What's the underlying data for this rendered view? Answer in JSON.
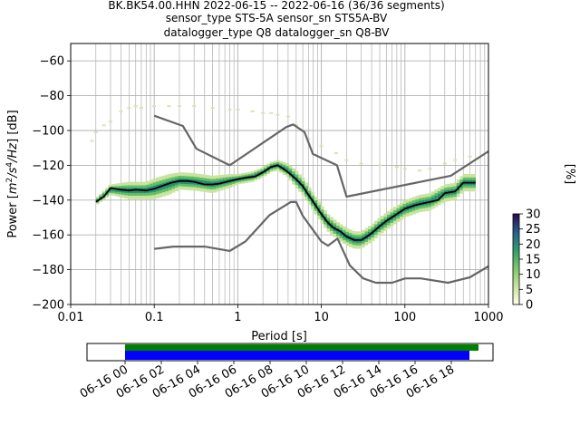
{
  "chart_data": [
    {
      "type": "heatmap",
      "kind": "ppsd",
      "title_lines": [
        "BK.BK54.00.HHN   2022-06-15 -- 2022-06-16  (36/36 segments)",
        "sensor_type STS-5A sensor_sn STS5A-BV",
        "datalogger_type Q8 datalogger_sn Q8-BV"
      ],
      "xlabel": "Period [s]",
      "ylabel": "Power [m²/s⁴/Hz] [dB]",
      "ylabel_parts": {
        "a": "Power [",
        "b": "m",
        "c": "2",
        "d": "/s",
        "e": "4",
        "f": "/Hz",
        "g": "] [dB]"
      },
      "x_scale": "log",
      "xlim": [
        0.01,
        1000
      ],
      "ylim": [
        -200,
        -50
      ],
      "x_ticks": [
        {
          "value": 0.01,
          "label": "0.01"
        },
        {
          "value": 0.1,
          "label": "0.1"
        },
        {
          "value": 1,
          "label": "1"
        },
        {
          "value": 10,
          "label": "10"
        },
        {
          "value": 100,
          "label": "100"
        },
        {
          "value": 1000,
          "label": "1000"
        }
      ],
      "y_ticks": [
        {
          "value": -60,
          "label": "−60"
        },
        {
          "value": -80,
          "label": "−80"
        },
        {
          "value": -100,
          "label": "−100"
        },
        {
          "value": -120,
          "label": "−120"
        },
        {
          "value": -140,
          "label": "−140"
        },
        {
          "value": -160,
          "label": "−160"
        },
        {
          "value": -180,
          "label": "−180"
        },
        {
          "value": -200,
          "label": "−200"
        }
      ],
      "grid": true,
      "nhnm": {
        "x": [
          0.1,
          0.22,
          0.32,
          0.8,
          3.8,
          4.6,
          6.3,
          7.9,
          15.4,
          20,
          354.8,
          1000
        ],
        "y": [
          -91.5,
          -97.4,
          -110.5,
          -120,
          -98,
          -96.5,
          -101,
          -113.5,
          -120,
          -138,
          -126,
          -112
        ]
      },
      "nlnm": {
        "x": [
          0.1,
          0.17,
          0.4,
          0.8,
          1.24,
          2.4,
          4.3,
          5,
          6,
          10,
          12,
          15.6,
          21.9,
          31.6,
          45,
          70,
          101,
          154,
          328,
          600,
          1000
        ],
        "y": [
          -168,
          -166.7,
          -166.7,
          -169.2,
          -163.7,
          -148.6,
          -141.1,
          -141.1,
          -149,
          -163.8,
          -166.2,
          -162.1,
          -177.5,
          -185,
          -187.5,
          -187.5,
          -185,
          -185,
          -187.5,
          -184.4,
          -178
        ]
      },
      "mean": {
        "x": [
          0.02,
          0.025,
          0.03,
          0.04,
          0.05,
          0.06,
          0.08,
          0.1,
          0.13,
          0.16,
          0.2,
          0.25,
          0.3,
          0.4,
          0.5,
          0.6,
          0.8,
          1,
          1.3,
          1.6,
          2,
          2.5,
          3,
          3.5,
          4,
          5,
          6,
          7,
          8,
          10,
          12,
          14,
          17,
          20,
          25,
          30,
          35,
          40,
          50,
          60,
          80,
          100,
          130,
          160,
          200,
          250,
          300,
          400,
          500,
          600,
          700
        ],
        "y": [
          -141,
          -138,
          -133,
          -134,
          -134.5,
          -134,
          -134.5,
          -133.5,
          -131.5,
          -130,
          -129,
          -129,
          -129.5,
          -131,
          -131,
          -130.5,
          -129,
          -128,
          -127,
          -126.5,
          -124,
          -121,
          -120,
          -122,
          -124,
          -128,
          -132,
          -137,
          -141,
          -148,
          -153,
          -156,
          -158,
          -161,
          -163,
          -163,
          -161,
          -159,
          -155,
          -152,
          -148,
          -145,
          -143,
          -142,
          -141,
          -140,
          -136,
          -135,
          -130,
          -130,
          -130
        ]
      },
      "mode_band": {
        "x": [
          0.02,
          0.03,
          0.05,
          0.08,
          0.1,
          0.15,
          0.2,
          0.3,
          0.5,
          0.8,
          1,
          1.5,
          2,
          2.5,
          3,
          4,
          5,
          6,
          8,
          10,
          12,
          15,
          20,
          25,
          30,
          40,
          50,
          70,
          100,
          150,
          200,
          300,
          400,
          500,
          700
        ],
        "y": [
          -141,
          -134,
          -134.5,
          -134.5,
          -133.5,
          -131,
          -129,
          -129.5,
          -131,
          -129,
          -128,
          -126.5,
          -124,
          -121,
          -120,
          -123,
          -128,
          -132,
          -141,
          -148,
          -153,
          -157,
          -161,
          -163,
          -163,
          -159,
          -155,
          -150,
          -145,
          -142,
          -141,
          -136,
          -135,
          -130,
          -130
        ],
        "spread": [
          2,
          3,
          5,
          5,
          6,
          6,
          5,
          5,
          5,
          4,
          3,
          3,
          3,
          3,
          3,
          4,
          5,
          5,
          5,
          5,
          5,
          5,
          5,
          5,
          5,
          5,
          5,
          5,
          5,
          5,
          5,
          5,
          5,
          5,
          5
        ]
      },
      "outliers": {
        "x": [
          0.018,
          0.02,
          0.025,
          0.03,
          0.04,
          0.05,
          0.06,
          0.07,
          0.1,
          0.15,
          0.2,
          0.3,
          0.5,
          0.8,
          1,
          1.5,
          2,
          2.5,
          3,
          4,
          5,
          7,
          10,
          15,
          20,
          30,
          50,
          80,
          100,
          150,
          200,
          300,
          400,
          600
        ],
        "y": [
          -106,
          -101,
          -97,
          -95,
          -89,
          -87,
          -86,
          -87,
          -86,
          -86,
          -86,
          -86,
          -87,
          -88,
          -88,
          -89,
          -90,
          -90,
          -91,
          -92,
          -97,
          -105,
          -109,
          -113,
          -117,
          -119,
          -120,
          -121,
          -122,
          -123,
          -122,
          -119,
          -117,
          -115
        ]
      },
      "colorbar": {
        "label": "[%]",
        "min": 0,
        "max": 30,
        "ticks": [
          {
            "value": 0,
            "label": "0"
          },
          {
            "value": 5,
            "label": "5"
          },
          {
            "value": 10,
            "label": "10"
          },
          {
            "value": 15,
            "label": "15"
          },
          {
            "value": 20,
            "label": "20"
          },
          {
            "value": 25,
            "label": "25"
          },
          {
            "value": 30,
            "label": "30"
          }
        ]
      },
      "colors": {
        "mode_low": "#c9e3a1",
        "mode_mid": "#5fbf60",
        "mode_high": "#2a8a7a",
        "mode_top": "#1c2a66",
        "mean": "#000000",
        "noise_model": "#666666",
        "grid": "#b0b0b0",
        "outlier": "#d4e6b5"
      }
    },
    {
      "type": "bar",
      "kind": "data-coverage-timeline",
      "x_ticks": [
        {
          "hour": 0,
          "label": "06-16 00"
        },
        {
          "hour": 2,
          "label": "06-16 02"
        },
        {
          "hour": 4,
          "label": "06-16 04"
        },
        {
          "hour": 6,
          "label": "06-16 06"
        },
        {
          "hour": 8,
          "label": "06-16 08"
        },
        {
          "hour": 10,
          "label": "06-16 10"
        },
        {
          "hour": 12,
          "label": "06-16 12"
        },
        {
          "hour": 14,
          "label": "06-16 14"
        },
        {
          "hour": 16,
          "label": "06-16 16"
        },
        {
          "hour": 18,
          "label": "06-16 18"
        }
      ],
      "xlim_hours": [
        -2.1,
        20.3
      ],
      "green_bar": {
        "start_hour": 0,
        "end_hour": 19.5,
        "color": "#008000"
      },
      "blue_bar": {
        "start_hour": 0,
        "end_hour": 19.0,
        "color": "#0000ff"
      }
    }
  ]
}
